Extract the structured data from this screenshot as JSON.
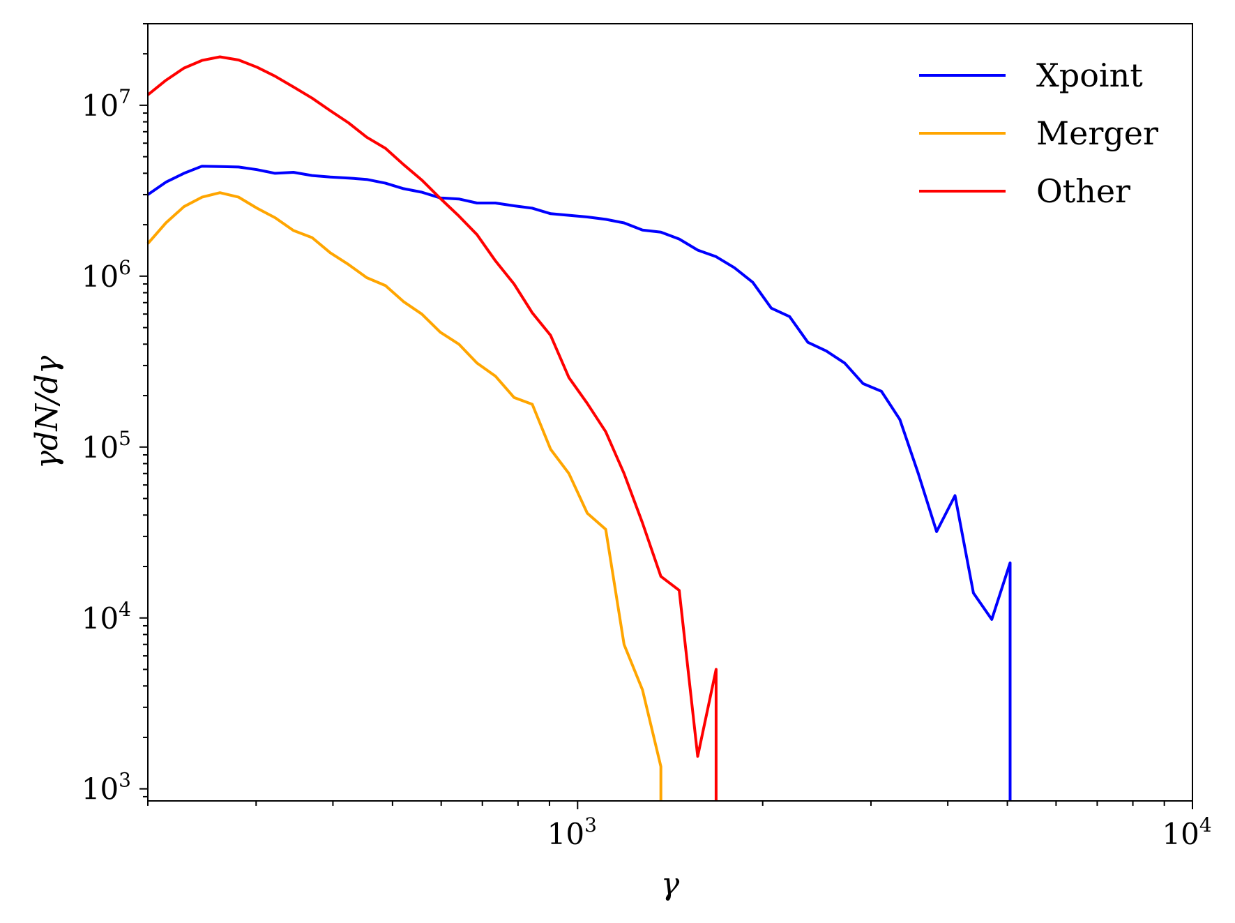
{
  "chart_data": {
    "type": "line",
    "title": "",
    "xlabel": "γ",
    "ylabel": "γdN/dγ",
    "xscale": "log",
    "yscale": "log",
    "xlim": [
      200,
      10000
    ],
    "ylim": [
      850,
      30000000
    ],
    "x_ticks": [
      {
        "base": "10",
        "exp": "3",
        "value": 1000
      },
      {
        "base": "10",
        "exp": "4",
        "value": 10000
      }
    ],
    "y_ticks": [
      {
        "base": "10",
        "exp": "3",
        "value": 1000
      },
      {
        "base": "10",
        "exp": "4",
        "value": 10000
      },
      {
        "base": "10",
        "exp": "5",
        "value": 100000
      },
      {
        "base": "10",
        "exp": "6",
        "value": 1000000
      },
      {
        "base": "10",
        "exp": "7",
        "value": 10000000
      }
    ],
    "grid": false,
    "legend": {
      "position": "top-right"
    },
    "series": [
      {
        "name": "Xpoint",
        "color": "#0000ff",
        "drop_to_axis": true,
        "points": [
          [
            200,
            3000000
          ],
          [
            214,
            3550000
          ],
          [
            229,
            4000000
          ],
          [
            245,
            4400000
          ],
          [
            262,
            4380000
          ],
          [
            281,
            4350000
          ],
          [
            301,
            4200000
          ],
          [
            322,
            4000000
          ],
          [
            345,
            4050000
          ],
          [
            370,
            3880000
          ],
          [
            396,
            3800000
          ],
          [
            424,
            3750000
          ],
          [
            454,
            3680000
          ],
          [
            487,
            3500000
          ],
          [
            521,
            3250000
          ],
          [
            558,
            3100000
          ],
          [
            598,
            2870000
          ],
          [
            641,
            2830000
          ],
          [
            686,
            2680000
          ],
          [
            735,
            2680000
          ],
          [
            788,
            2580000
          ],
          [
            844,
            2500000
          ],
          [
            904,
            2320000
          ],
          [
            968,
            2270000
          ],
          [
            1037,
            2220000
          ],
          [
            1111,
            2150000
          ],
          [
            1190,
            2050000
          ],
          [
            1275,
            1860000
          ],
          [
            1366,
            1810000
          ],
          [
            1463,
            1650000
          ],
          [
            1568,
            1420000
          ],
          [
            1680,
            1300000
          ],
          [
            1799,
            1120000
          ],
          [
            1927,
            920000
          ],
          [
            2065,
            650000
          ],
          [
            2212,
            580000
          ],
          [
            2369,
            410000
          ],
          [
            2538,
            365000
          ],
          [
            2719,
            310000
          ],
          [
            2913,
            235000
          ],
          [
            3120,
            212000
          ],
          [
            3343,
            145000
          ],
          [
            3581,
            70000
          ],
          [
            3836,
            32000
          ],
          [
            4110,
            52000
          ],
          [
            4403,
            14000
          ],
          [
            4716,
            9800
          ],
          [
            5052,
            21000
          ]
        ]
      },
      {
        "name": "Merger",
        "color": "#ffa500",
        "drop_to_axis": false,
        "points": [
          [
            200,
            1550000
          ],
          [
            214,
            2050000
          ],
          [
            229,
            2550000
          ],
          [
            245,
            2900000
          ],
          [
            262,
            3080000
          ],
          [
            281,
            2900000
          ],
          [
            301,
            2500000
          ],
          [
            322,
            2200000
          ],
          [
            345,
            1850000
          ],
          [
            370,
            1680000
          ],
          [
            396,
            1370000
          ],
          [
            424,
            1170000
          ],
          [
            454,
            980000
          ],
          [
            487,
            880000
          ],
          [
            521,
            710000
          ],
          [
            558,
            600000
          ],
          [
            598,
            470000
          ],
          [
            641,
            400000
          ],
          [
            686,
            310000
          ],
          [
            735,
            260000
          ],
          [
            788,
            195000
          ],
          [
            844,
            178000
          ],
          [
            904,
            97000
          ],
          [
            968,
            70000
          ],
          [
            1037,
            41000
          ],
          [
            1111,
            33000
          ],
          [
            1190,
            7000
          ],
          [
            1275,
            3800
          ],
          [
            1366,
            1350
          ],
          [
            1366,
            850
          ]
        ]
      },
      {
        "name": "Other",
        "color": "#ff0000",
        "drop_to_axis": true,
        "points": [
          [
            200,
            11500000
          ],
          [
            214,
            14000000
          ],
          [
            229,
            16500000
          ],
          [
            245,
            18300000
          ],
          [
            262,
            19200000
          ],
          [
            281,
            18400000
          ],
          [
            301,
            16700000
          ],
          [
            322,
            14800000
          ],
          [
            345,
            12800000
          ],
          [
            370,
            11000000
          ],
          [
            396,
            9300000
          ],
          [
            424,
            7900000
          ],
          [
            454,
            6500000
          ],
          [
            487,
            5600000
          ],
          [
            521,
            4500000
          ],
          [
            558,
            3650000
          ],
          [
            598,
            2850000
          ],
          [
            641,
            2250000
          ],
          [
            686,
            1750000
          ],
          [
            735,
            1230000
          ],
          [
            788,
            900000
          ],
          [
            844,
            610000
          ],
          [
            904,
            450000
          ],
          [
            968,
            255000
          ],
          [
            1037,
            180000
          ],
          [
            1111,
            123000
          ],
          [
            1190,
            70000
          ],
          [
            1275,
            36000
          ],
          [
            1366,
            17500
          ],
          [
            1463,
            14500
          ],
          [
            1568,
            1550
          ],
          [
            1680,
            5000
          ]
        ]
      }
    ]
  }
}
